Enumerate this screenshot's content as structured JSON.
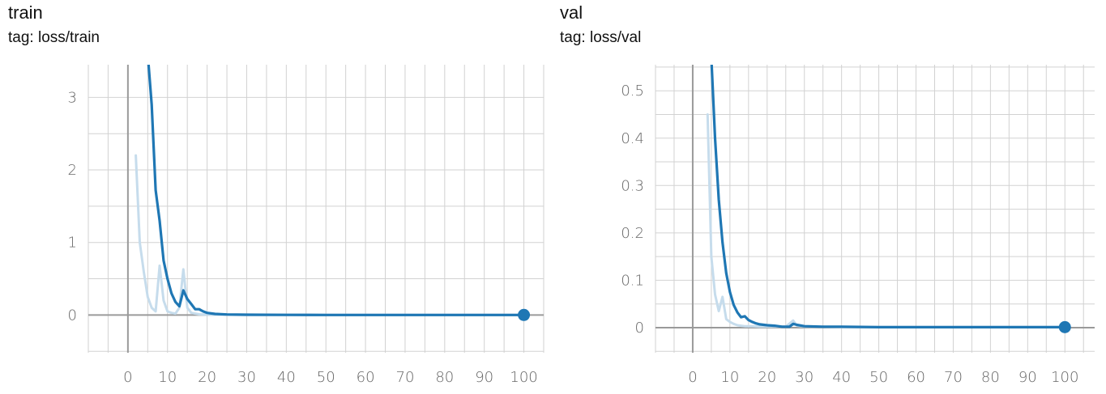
{
  "chart_data": [
    {
      "type": "line",
      "title": "train",
      "subtitle": "tag: loss/train",
      "xlim": [
        -10,
        105
      ],
      "ylim": [
        -0.52,
        3.45
      ],
      "x_ticks": [
        0,
        10,
        20,
        30,
        40,
        50,
        60,
        70,
        80,
        90,
        100
      ],
      "y_ticks": [
        0,
        1,
        2,
        3
      ],
      "y_tick_labels": [
        "0",
        "1",
        "2",
        "3"
      ],
      "grid": true,
      "color": "#1f77b4",
      "raw_color": "#c6dcec",
      "series": [
        {
          "role": "raw",
          "x": [
            2,
            3,
            4,
            5,
            6,
            7,
            8,
            9,
            10,
            11,
            12,
            13,
            14,
            15,
            16,
            17,
            18,
            20,
            25,
            30,
            40,
            50,
            60,
            70,
            80,
            90,
            100
          ],
          "y": [
            2.2,
            1.0,
            0.6,
            0.25,
            0.1,
            0.05,
            0.68,
            0.2,
            0.05,
            0.03,
            0.02,
            0.1,
            0.63,
            0.1,
            0.03,
            0.02,
            0.01,
            0.005,
            0.003,
            0.002,
            0.001,
            0.001,
            0.001,
            0.001,
            0.001,
            0.001,
            0.001
          ]
        },
        {
          "role": "smoothed",
          "x": [
            5,
            6,
            7,
            8,
            9,
            10,
            11,
            12,
            13,
            14,
            15,
            16,
            17,
            18,
            19,
            20,
            22,
            25,
            30,
            40,
            50,
            60,
            70,
            80,
            90,
            100
          ],
          "y": [
            3.6,
            2.9,
            1.72,
            1.3,
            0.75,
            0.5,
            0.3,
            0.18,
            0.12,
            0.34,
            0.22,
            0.15,
            0.08,
            0.08,
            0.05,
            0.03,
            0.015,
            0.008,
            0.004,
            0.002,
            0.001,
            0.001,
            0.001,
            0.001,
            0.001,
            0.001
          ]
        }
      ],
      "last_point": {
        "x": 100,
        "y": 0.001
      }
    },
    {
      "type": "line",
      "title": "val",
      "subtitle": "tag: loss/val",
      "xlim": [
        -10,
        108
      ],
      "ylim": [
        -0.053,
        0.555
      ],
      "x_ticks": [
        0,
        10,
        20,
        30,
        40,
        50,
        60,
        70,
        80,
        90,
        100
      ],
      "y_ticks": [
        0,
        0.1,
        0.2,
        0.3,
        0.4,
        0.5
      ],
      "y_tick_labels": [
        "0",
        "0.1",
        "0.2",
        "0.3",
        "0.4",
        "0.5"
      ],
      "grid": true,
      "color": "#1f77b4",
      "raw_color": "#c6dcec",
      "series": [
        {
          "role": "raw",
          "x": [
            4,
            5,
            6,
            7,
            8,
            9,
            10,
            11,
            12,
            13,
            14,
            15,
            16,
            18,
            20,
            22,
            25,
            27,
            28,
            30,
            40,
            50,
            60,
            70,
            80,
            90,
            100
          ],
          "y": [
            0.45,
            0.15,
            0.07,
            0.035,
            0.065,
            0.018,
            0.012,
            0.008,
            0.005,
            0.004,
            0.003,
            0.003,
            0.003,
            0.002,
            0.002,
            0.002,
            0.002,
            0.015,
            0.004,
            0.002,
            0.001,
            0.001,
            0.001,
            0.001,
            0.001,
            0.001,
            0.001
          ]
        },
        {
          "role": "smoothed",
          "x": [
            5,
            6,
            7,
            8,
            9,
            10,
            11,
            12,
            13,
            14,
            15,
            16,
            17,
            18,
            20,
            22,
            24,
            26,
            27,
            28,
            30,
            35,
            40,
            50,
            60,
            70,
            80,
            90,
            100
          ],
          "y": [
            0.57,
            0.4,
            0.27,
            0.18,
            0.115,
            0.075,
            0.048,
            0.032,
            0.022,
            0.024,
            0.016,
            0.012,
            0.009,
            0.007,
            0.005,
            0.004,
            0.002,
            0.002,
            0.008,
            0.006,
            0.003,
            0.002,
            0.002,
            0.001,
            0.001,
            0.001,
            0.001,
            0.001,
            0.001
          ]
        }
      ],
      "last_point": {
        "x": 100,
        "y": 0.001
      }
    }
  ]
}
